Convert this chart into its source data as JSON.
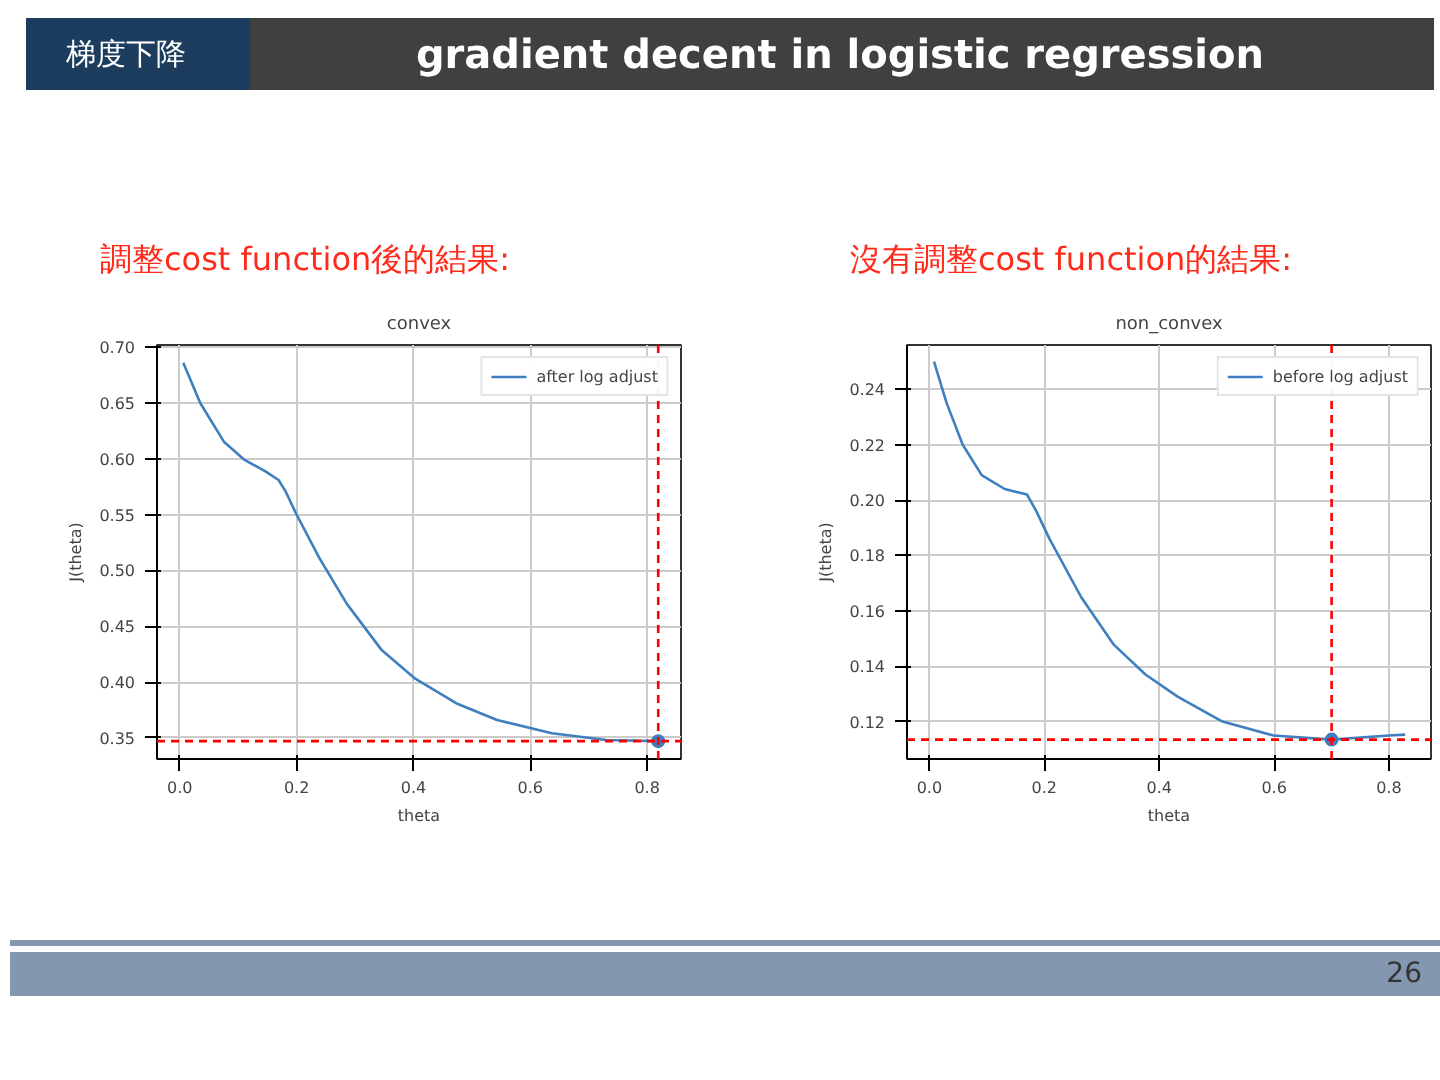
{
  "chart_data": [
    {
      "type": "line",
      "title": "convex",
      "subtitle": "調整cost function後的結果:",
      "xlabel": "theta",
      "ylabel": "J(theta)",
      "annotations": [
        "梯度下降",
        "gradient decent  in logistic regression",
        "26"
      ],
      "xlim": [
        -0.039,
        0.858
      ],
      "ylim": [
        0.331,
        0.702
      ],
      "xticks": [
        {
          "value": 0,
          "label": "0.0"
        },
        {
          "value": 0.2,
          "label": "0.2"
        },
        {
          "value": 0.4,
          "label": "0.4"
        },
        {
          "value": 0.6,
          "label": "0.6"
        },
        {
          "value": 0.8,
          "label": "0.8"
        }
      ],
      "yticks": [
        {
          "value": 0.35,
          "label": "0.35"
        },
        {
          "value": 0.4,
          "label": "0.40"
        },
        {
          "value": 0.45,
          "label": "0.45"
        },
        {
          "value": 0.5,
          "label": "0.50"
        },
        {
          "value": 0.55,
          "label": "0.55"
        },
        {
          "value": 0.6,
          "label": "0.60"
        },
        {
          "value": 0.65,
          "label": "0.65"
        },
        {
          "value": 0.7,
          "label": "0.70"
        }
      ],
      "grid": true,
      "legend": "top right",
      "series": [
        {
          "name": "after log adjust",
          "color": "#3f7fbf",
          "x": [
            0.006,
            0.035,
            0.076,
            0.111,
            0.146,
            0.169,
            0.181,
            0.199,
            0.239,
            0.286,
            0.345,
            0.403,
            0.473,
            0.543,
            0.637,
            0.73,
            0.819
          ],
          "values": [
            0.686,
            0.65,
            0.615,
            0.599,
            0.589,
            0.581,
            0.571,
            0.551,
            0.511,
            0.47,
            0.429,
            0.403,
            0.381,
            0.366,
            0.354,
            0.348,
            0.347
          ]
        },
        {
          "type": "scatter",
          "marker": "circle",
          "color": "#3f7fbf",
          "x": [
            0.819
          ],
          "values": [
            0.347
          ]
        }
      ],
      "ref_lines": [
        {
          "axis": "y",
          "value": 0.347,
          "color": "#ff0000",
          "line_style": "dashed"
        },
        {
          "axis": "x",
          "value": 0.819,
          "color": "#ff0000",
          "line_style": "dashed"
        }
      ]
    },
    {
      "type": "line",
      "title": "non_convex",
      "subtitle": "沒有調整cost function的結果:",
      "xlabel": "theta",
      "ylabel": "J(theta)",
      "xlim": [
        -0.039,
        0.873
      ],
      "ylim": [
        0.1065,
        0.256
      ],
      "xticks": [
        {
          "value": 0,
          "label": "0.0"
        },
        {
          "value": 0.2,
          "label": "0.2"
        },
        {
          "value": 0.4,
          "label": "0.4"
        },
        {
          "value": 0.6,
          "label": "0.6"
        },
        {
          "value": 0.8,
          "label": "0.8"
        }
      ],
      "yticks": [
        {
          "value": 0.12,
          "label": "0.12"
        },
        {
          "value": 0.14,
          "label": "0.14"
        },
        {
          "value": 0.16,
          "label": "0.16"
        },
        {
          "value": 0.18,
          "label": "0.18"
        },
        {
          "value": 0.2,
          "label": "0.20"
        },
        {
          "value": 0.22,
          "label": "0.22"
        },
        {
          "value": 0.24,
          "label": "0.24"
        }
      ],
      "grid": true,
      "legend": "top right",
      "series": [
        {
          "name": "before log adjust",
          "color": "#3f7fbf",
          "x": [
            0.008,
            0.03,
            0.058,
            0.091,
            0.131,
            0.17,
            0.186,
            0.209,
            0.264,
            0.32,
            0.376,
            0.432,
            0.51,
            0.599,
            0.7,
            0.8,
            0.828
          ],
          "values": [
            0.25,
            0.235,
            0.22,
            0.209,
            0.204,
            0.202,
            0.196,
            0.186,
            0.165,
            0.148,
            0.137,
            0.129,
            0.12,
            0.115,
            0.1135,
            0.115,
            0.1153
          ]
        },
        {
          "type": "scatter",
          "marker": "circle",
          "color": "#3f7fbf",
          "x": [
            0.7
          ],
          "values": [
            0.1135
          ]
        }
      ],
      "ref_lines": [
        {
          "axis": "y",
          "value": 0.1135,
          "color": "#ff0000",
          "line_style": "dashed"
        },
        {
          "axis": "x",
          "value": 0.7,
          "color": "#ff0000",
          "line_style": "dashed"
        }
      ]
    }
  ]
}
